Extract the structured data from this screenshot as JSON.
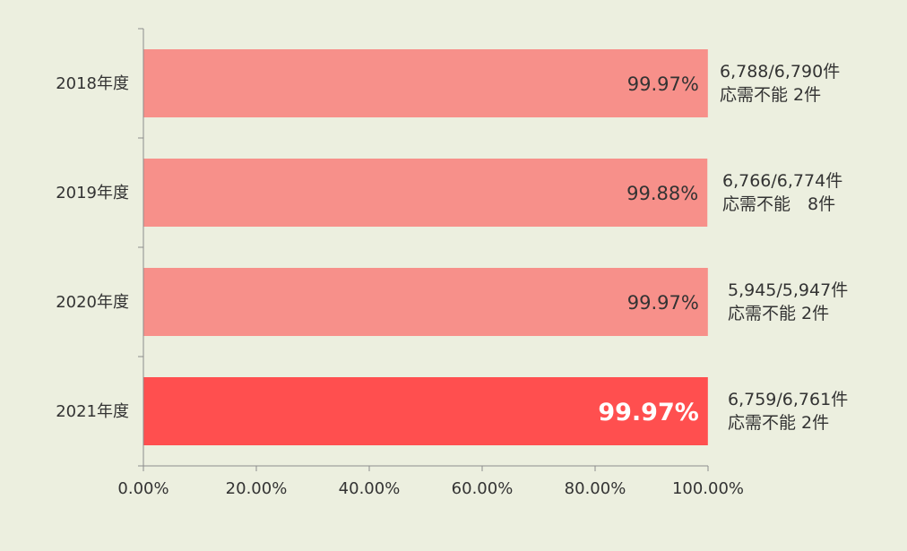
{
  "chart_data": {
    "type": "bar",
    "orientation": "horizontal",
    "categories": [
      "2018年度",
      "2019年度",
      "2020年度",
      "2021年度"
    ],
    "values": [
      99.97,
      99.88,
      99.97,
      99.97
    ],
    "value_labels": [
      "99.97%",
      "99.88%",
      "99.97%",
      "99.97%"
    ],
    "highlight_index": 3,
    "annotations": [
      {
        "counts": "6,788/6,790件",
        "note": "応需不能 2件"
      },
      {
        "counts": "6,766/6,774件",
        "note": "応需不能　8件"
      },
      {
        "counts": "5,945/5,947件",
        "note": "応需不能 2件"
      },
      {
        "counts": "6,759/6,761件",
        "note": "応需不能 2件"
      }
    ],
    "x_ticks": [
      "0.00%",
      "20.00%",
      "40.00%",
      "60.00%",
      "80.00%",
      "100.00%"
    ],
    "xlim": [
      0,
      100
    ],
    "title": "",
    "xlabel": "",
    "ylabel": "",
    "grid": false,
    "colors": {
      "bar": "#F7908A",
      "bar_highlight": "#FF4F4F",
      "background": "#ECEFDF",
      "axis": "#8C8C8C"
    }
  }
}
